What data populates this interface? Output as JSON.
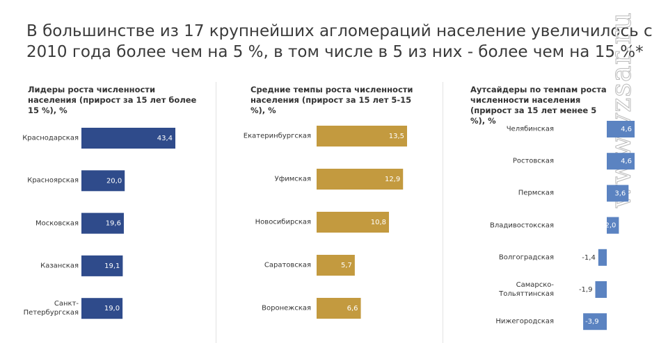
{
  "title": "В большинстве из 17 крупнейших агломераций население увеличилось с 2010 года более чем на 5 %, в том числе в 5 из них - более чем на 15 %*",
  "watermark": "www.vzsar.ru",
  "chart_data": [
    {
      "type": "bar",
      "orientation": "horizontal",
      "title": "Лидеры роста численности населения (прирост за 15 лет более 15 %), %",
      "categories": [
        "Краснодарская",
        "Красноярская",
        "Московская",
        "Казанская",
        "Санкт-Петербургская"
      ],
      "values": [
        43.4,
        20.0,
        19.6,
        19.1,
        19.0
      ],
      "value_labels": [
        "43,4",
        "20,0",
        "19,6",
        "19,1",
        "19,0"
      ],
      "color": "#2f4b8b"
    },
    {
      "type": "bar",
      "orientation": "horizontal",
      "title": "Средние темпы роста численности населения (прирост за 15 лет 5-15 %), %",
      "categories": [
        "Екатеринбургская",
        "Уфимская",
        "Новосибирская",
        "Саратовская",
        "Воронежская"
      ],
      "values": [
        13.5,
        12.9,
        10.8,
        5.7,
        6.6
      ],
      "value_labels": [
        "13,5",
        "12,9",
        "10,8",
        "5,7",
        "6,6"
      ],
      "color": "#c39a3f"
    },
    {
      "type": "bar",
      "orientation": "horizontal",
      "title": "Аутсайдеры по темпам роста численности населения (прирост за 15 лет менее 5 %), %",
      "categories": [
        "Челябинская",
        "Ростовская",
        "Пермская",
        "Владивостокская",
        "Волгоградская",
        "Самарско-Тольяттинская",
        "Нижегородская"
      ],
      "values": [
        4.6,
        4.6,
        3.6,
        2.0,
        -1.4,
        -1.9,
        -3.9
      ],
      "value_labels": [
        "4,6",
        "4,6",
        "3,6",
        "2,0",
        "-1,4",
        "-1,9",
        "-3,9"
      ],
      "color": "#5b83c1"
    }
  ]
}
